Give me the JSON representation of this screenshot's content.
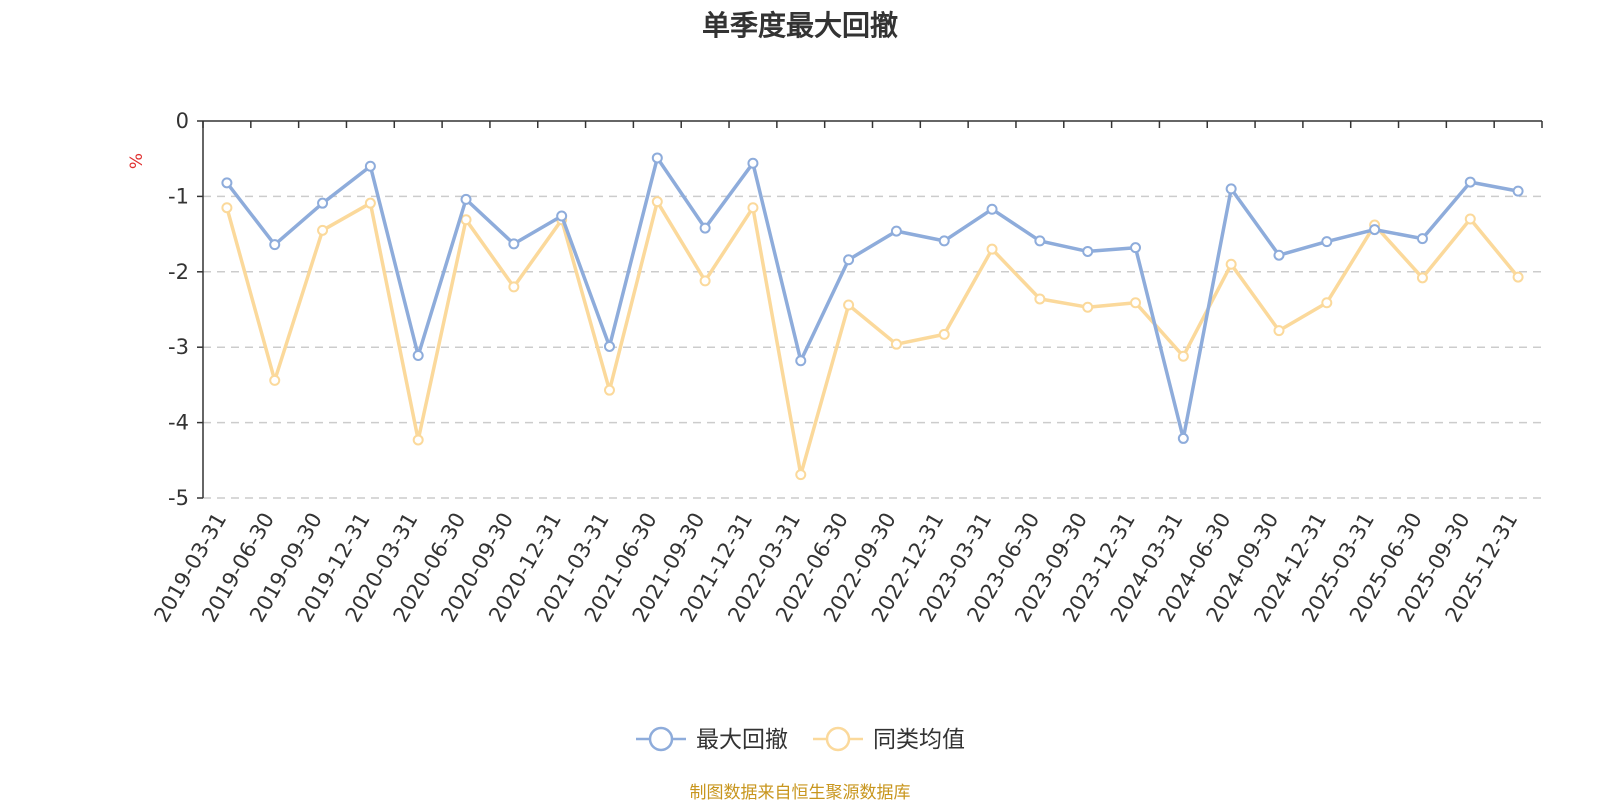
{
  "chart_data": {
    "type": "line",
    "title": "单季度最大回撤",
    "ylabel": "%",
    "ylim": [
      -5,
      0
    ],
    "yticks": [
      0,
      -1,
      -2,
      -3,
      -4,
      -5
    ],
    "grid": true,
    "legend_position": "bottom-center",
    "categories": [
      "2019-03-31",
      "2019-06-30",
      "2019-09-30",
      "2019-12-31",
      "2020-03-31",
      "2020-06-30",
      "2020-09-30",
      "2020-12-31",
      "2021-03-31",
      "2021-06-30",
      "2021-09-30",
      "2021-12-31",
      "2022-03-31",
      "2022-06-30",
      "2022-09-30",
      "2022-12-31",
      "2023-03-31",
      "2023-06-30",
      "2023-09-30",
      "2023-12-31",
      "2024-03-31",
      "2024-06-30",
      "2024-09-30",
      "2024-12-31",
      "2025-03-31",
      "2025-06-30",
      "2025-09-30",
      "2025-12-31"
    ],
    "series": [
      {
        "name": "最大回撤",
        "color": "#8eacdb",
        "values": [
          -0.82,
          -1.64,
          -1.09,
          -0.6,
          -3.11,
          -1.04,
          -1.63,
          -1.26,
          -2.99,
          -0.49,
          -1.42,
          -0.56,
          -3.18,
          -1.84,
          -1.46,
          -1.59,
          -1.17,
          -1.59,
          -1.73,
          -1.68,
          -4.21,
          -0.9,
          -1.78,
          -1.6,
          -1.44,
          -1.56,
          -0.81,
          -0.93
        ]
      },
      {
        "name": "同类均值",
        "color": "#fbd99b",
        "values": [
          -1.15,
          -3.44,
          -1.45,
          -1.09,
          -4.23,
          -1.31,
          -2.2,
          -1.31,
          -3.57,
          -1.07,
          -2.12,
          -1.15,
          -4.69,
          -2.44,
          -2.96,
          -2.83,
          -1.7,
          -2.36,
          -2.47,
          -2.41,
          -3.12,
          -1.9,
          -2.78,
          -2.41,
          -1.38,
          -2.08,
          -1.3,
          -2.07
        ]
      }
    ]
  },
  "footer": {
    "source": "制图数据来自恒生聚源数据库"
  },
  "colors": {
    "axis": "#333333",
    "grid": "#cccccc",
    "unit_label": "#e03030",
    "source": "#c8961e"
  }
}
